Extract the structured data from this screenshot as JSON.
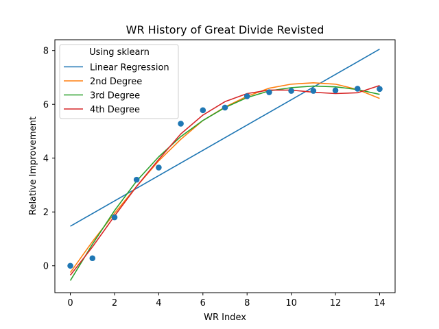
{
  "chart_data": {
    "type": "line",
    "title": "WR History of Great Divide Revisted",
    "xlabel": "WR Index",
    "ylabel": "Relative Improvement",
    "xlim": [
      -0.7,
      14.7
    ],
    "ylim": [
      -1.0,
      8.4
    ],
    "xticks": [
      0,
      2,
      4,
      6,
      8,
      10,
      12,
      14
    ],
    "yticks": [
      0,
      2,
      4,
      6,
      8
    ],
    "grid": false,
    "legend": {
      "title": "Using sklearn",
      "placement": "upper-left"
    },
    "scatter": {
      "name": "",
      "color": "#1f77b4",
      "x": [
        0,
        1,
        2,
        3,
        4,
        5,
        6,
        7,
        8,
        9,
        10,
        11,
        12,
        13,
        14
      ],
      "y": [
        0.0,
        0.28,
        1.8,
        3.2,
        3.65,
        5.28,
        5.78,
        5.88,
        6.3,
        6.45,
        6.5,
        6.5,
        6.52,
        6.58,
        6.57
      ]
    },
    "series": [
      {
        "name": "Linear Regression",
        "color": "#1f77b4",
        "x": [
          0,
          14
        ],
        "y": [
          1.47,
          8.05
        ]
      },
      {
        "name": "2nd Degree",
        "color": "#ff7f0e",
        "x": [
          0,
          1,
          2,
          3,
          4,
          5,
          6,
          7,
          8,
          9,
          10,
          11,
          12,
          13,
          14
        ],
        "y": [
          -0.25,
          0.9,
          1.95,
          2.95,
          3.9,
          4.7,
          5.4,
          5.9,
          6.3,
          6.6,
          6.75,
          6.8,
          6.75,
          6.55,
          6.22
        ]
      },
      {
        "name": "3rd Degree",
        "color": "#2ca02c",
        "x": [
          0,
          1,
          2,
          3,
          4,
          5,
          6,
          7,
          8,
          9,
          10,
          11,
          12,
          13,
          14
        ],
        "y": [
          -0.55,
          0.8,
          2.05,
          3.15,
          4.05,
          4.8,
          5.4,
          5.88,
          6.25,
          6.5,
          6.62,
          6.68,
          6.65,
          6.55,
          6.37
        ]
      },
      {
        "name": "4th Degree",
        "color": "#d62728",
        "x": [
          0,
          1,
          2,
          3,
          4,
          5,
          6,
          7,
          8,
          9,
          10,
          11,
          12,
          13,
          14
        ],
        "y": [
          -0.35,
          0.7,
          1.85,
          2.95,
          3.95,
          4.9,
          5.6,
          6.1,
          6.4,
          6.53,
          6.53,
          6.45,
          6.4,
          6.43,
          6.7
        ]
      }
    ]
  }
}
